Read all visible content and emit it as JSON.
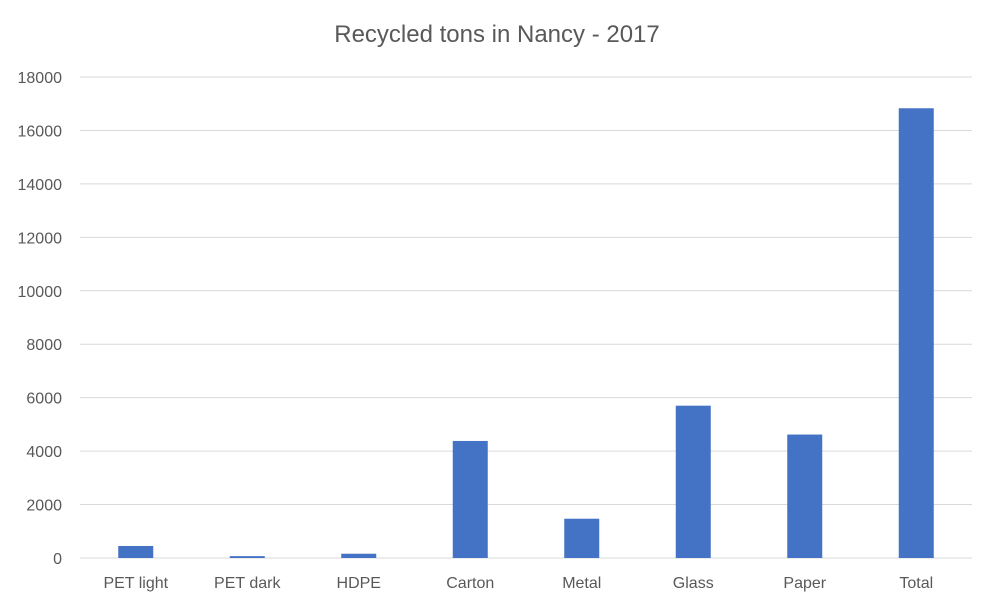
{
  "chart_data": {
    "type": "bar",
    "title": "Recycled tons in Nancy - 2017",
    "xlabel": "",
    "ylabel": "",
    "categories": [
      "PET light",
      "PET dark",
      "HDPE",
      "Carton",
      "Metal",
      "Glass",
      "Paper",
      "Total"
    ],
    "values": [
      450,
      70,
      160,
      4380,
      1470,
      5700,
      4620,
      16830
    ],
    "ylim": [
      0,
      18000
    ],
    "yticks": [
      "0",
      "2000",
      "4000",
      "6000",
      "8000",
      "10000",
      "12000",
      "14000",
      "16000",
      "18000"
    ],
    "grid": true,
    "legend": "none",
    "bar_color": "#4472C4"
  }
}
